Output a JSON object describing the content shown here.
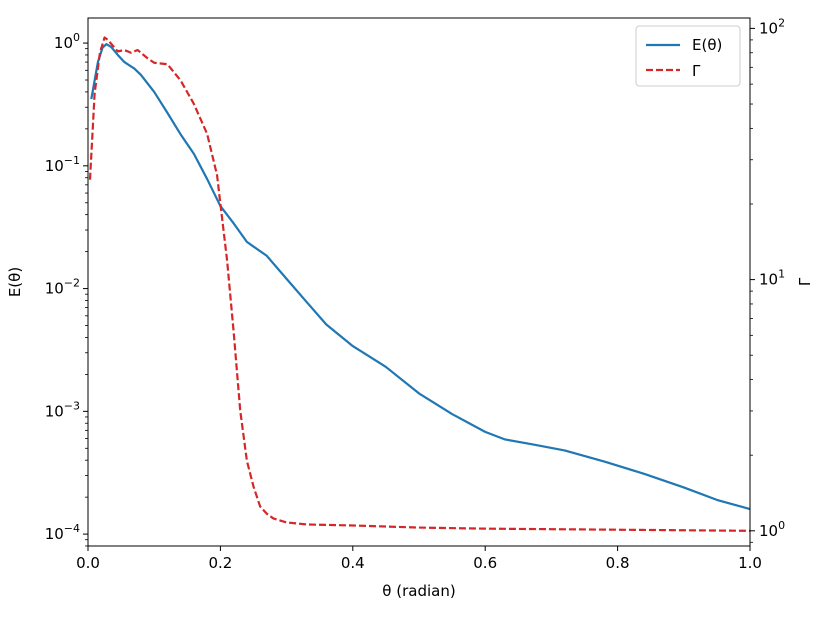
{
  "chart_data": {
    "type": "line",
    "xlabel": "θ (radian)",
    "ylabel_left": "E(θ)",
    "ylabel_right": "Γ",
    "xlim": [
      0.0,
      1.0
    ],
    "ylim_left": [
      8e-05,
      1.6
    ],
    "ylim_right": [
      0.87,
      110
    ],
    "yscale_left": "log",
    "yscale_right": "log",
    "x_ticks": [
      "0.0",
      "0.2",
      "0.4",
      "0.6",
      "0.8",
      "1.0"
    ],
    "legend": {
      "location": "upper right"
    },
    "series": [
      {
        "name": "E(θ)",
        "axis": "left",
        "color": "#1f77b4",
        "linestyle": "solid",
        "x": [
          0.005,
          0.015,
          0.022,
          0.028,
          0.035,
          0.045,
          0.055,
          0.07,
          0.08,
          0.1,
          0.12,
          0.14,
          0.16,
          0.18,
          0.2,
          0.22,
          0.24,
          0.25,
          0.27,
          0.3,
          0.33,
          0.36,
          0.4,
          0.45,
          0.5,
          0.55,
          0.6,
          0.63,
          0.67,
          0.72,
          0.78,
          0.84,
          0.9,
          0.95,
          1.0
        ],
        "y": [
          0.35,
          0.7,
          0.92,
          0.98,
          0.93,
          0.8,
          0.7,
          0.62,
          0.55,
          0.4,
          0.27,
          0.18,
          0.125,
          0.078,
          0.047,
          0.034,
          0.024,
          0.022,
          0.0185,
          0.012,
          0.0078,
          0.0051,
          0.0034,
          0.0023,
          0.0014,
          0.00095,
          0.00068,
          0.00059,
          0.00054,
          0.00048,
          0.00039,
          0.00031,
          0.00024,
          0.00019,
          0.00016
        ]
      },
      {
        "name": "Γ",
        "axis": "right",
        "color": "#d62728",
        "linestyle": "dashed",
        "x": [
          0.003,
          0.01,
          0.018,
          0.025,
          0.03,
          0.038,
          0.045,
          0.055,
          0.065,
          0.075,
          0.09,
          0.1,
          0.12,
          0.14,
          0.16,
          0.18,
          0.195,
          0.2,
          0.21,
          0.22,
          0.23,
          0.24,
          0.25,
          0.26,
          0.27,
          0.28,
          0.3,
          0.33,
          0.4,
          0.5,
          0.6,
          0.7,
          0.8,
          0.9,
          1.0
        ],
        "y": [
          25,
          55,
          80,
          92,
          90,
          85,
          81,
          82,
          80,
          82,
          76,
          73,
          72,
          62,
          50,
          38,
          26,
          20,
          12,
          6.2,
          3.0,
          1.9,
          1.5,
          1.25,
          1.17,
          1.12,
          1.08,
          1.06,
          1.05,
          1.03,
          1.02,
          1.015,
          1.01,
          1.005,
          1.0
        ]
      }
    ]
  }
}
